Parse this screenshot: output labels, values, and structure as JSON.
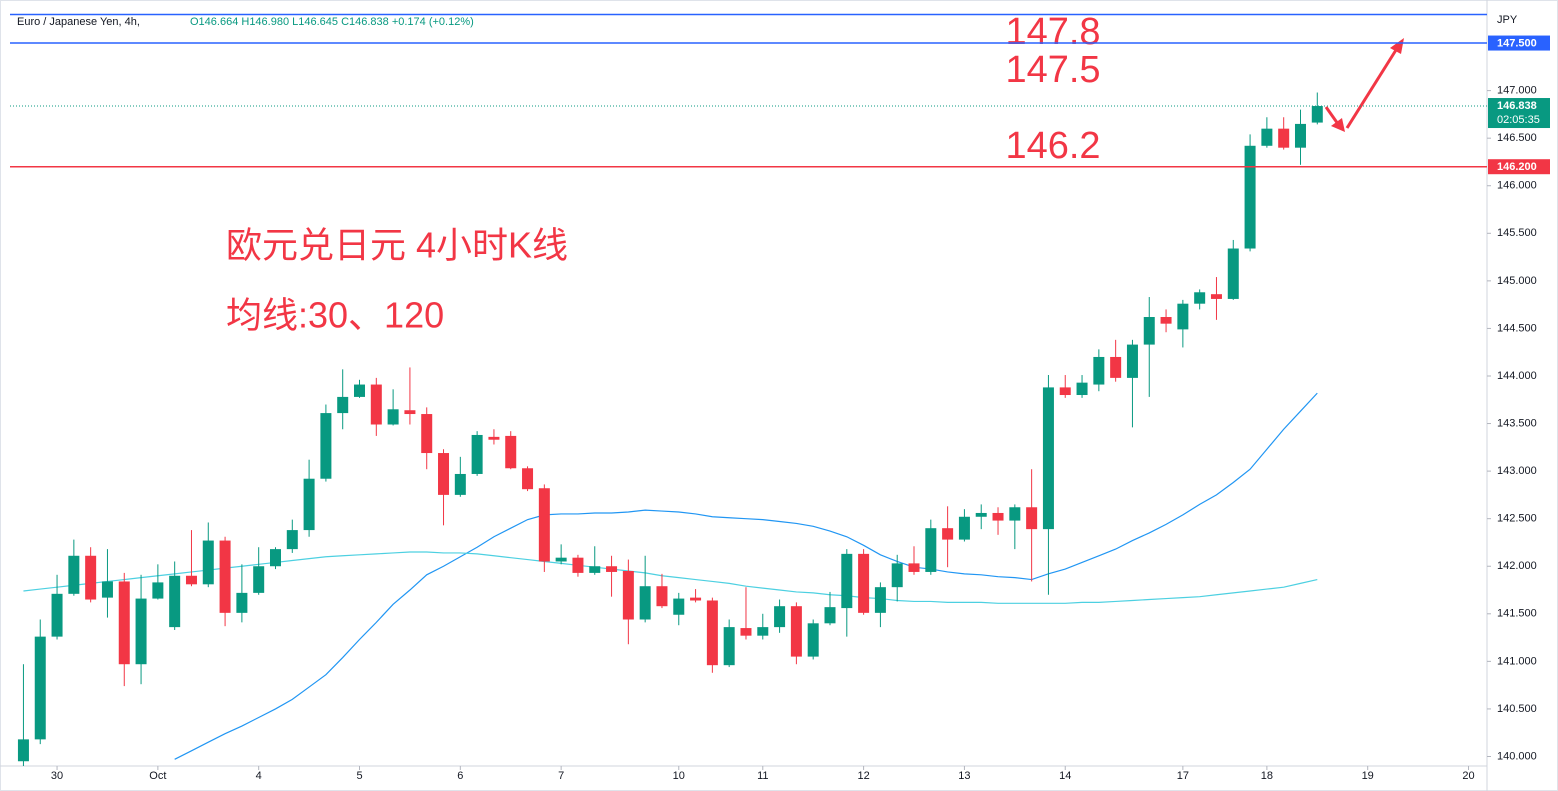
{
  "chart_data": {
    "type": "candlestick",
    "symbol": "Euro / Japanese Yen, 4h,",
    "ohlc_text": "O146.664 H146.980 L146.645 C146.838 +0.174 (+0.12%)",
    "currency": "JPY",
    "title": "欧元兑日元 4小时K线",
    "subtitle": "均线:30、120",
    "annotations": [
      "147.8",
      "147.5",
      "146.2"
    ],
    "up_color": "#089981",
    "down_color": "#f23645",
    "open": [
      139.95,
      140.18,
      141.26,
      141.71,
      142.11,
      141.67,
      141.84,
      140.97,
      141.66,
      141.36,
      141.9,
      141.81,
      142.27,
      141.51,
      141.72,
      142.0,
      142.18,
      142.38,
      142.92,
      143.61,
      143.78,
      143.91,
      143.49,
      143.64,
      143.6,
      143.19,
      142.75,
      142.97,
      143.36,
      143.37,
      143.03,
      142.82,
      142.05,
      142.09,
      141.93,
      142.0,
      141.95,
      141.44,
      141.79,
      141.49,
      141.67,
      141.64,
      140.96,
      141.35,
      141.27,
      141.36,
      141.58,
      141.05,
      141.4,
      141.56,
      142.13,
      141.51,
      141.78,
      142.03,
      141.94,
      142.4,
      142.28,
      142.52,
      142.56,
      142.48,
      142.62,
      142.39,
      143.88,
      143.8,
      143.91,
      144.2,
      143.98,
      144.33,
      144.62,
      144.49,
      144.76,
      144.86,
      144.81,
      145.34,
      146.42,
      146.6,
      146.4,
      146.664
    ],
    "high": [
      140.97,
      141.44,
      141.91,
      142.28,
      142.2,
      142.18,
      141.93,
      141.91,
      142.02,
      142.05,
      142.38,
      142.46,
      142.31,
      142.02,
      142.2,
      142.2,
      142.49,
      143.12,
      143.7,
      144.07,
      143.96,
      143.98,
      143.86,
      144.09,
      143.67,
      143.23,
      143.15,
      143.42,
      143.44,
      143.42,
      143.05,
      142.86,
      142.23,
      142.12,
      142.21,
      142.11,
      142.07,
      142.11,
      141.92,
      141.72,
      141.76,
      141.67,
      141.44,
      141.78,
      141.5,
      141.65,
      141.62,
      141.44,
      141.73,
      142.18,
      142.18,
      141.83,
      142.12,
      142.21,
      142.49,
      142.63,
      142.6,
      142.65,
      142.62,
      142.65,
      143.02,
      144.01,
      144.01,
      144.01,
      144.28,
      144.38,
      144.38,
      144.83,
      144.7,
      144.8,
      144.91,
      145.04,
      145.43,
      146.54,
      146.72,
      146.72,
      146.8,
      146.98
    ],
    "low": [
      139.9,
      140.13,
      141.23,
      141.69,
      141.62,
      141.46,
      140.74,
      140.76,
      141.65,
      141.33,
      141.79,
      141.78,
      141.37,
      141.41,
      141.7,
      141.97,
      142.14,
      142.31,
      142.89,
      143.44,
      143.77,
      143.37,
      143.48,
      143.49,
      143.02,
      142.43,
      142.73,
      142.95,
      143.28,
      143.02,
      142.79,
      141.94,
      142.02,
      141.89,
      141.91,
      141.68,
      141.18,
      141.41,
      141.56,
      141.38,
      141.62,
      140.88,
      140.94,
      141.23,
      141.23,
      141.3,
      140.97,
      141.02,
      141.38,
      141.26,
      141.49,
      141.36,
      141.63,
      141.91,
      141.91,
      141.99,
      142.26,
      142.39,
      142.33,
      142.18,
      141.84,
      141.7,
      143.77,
      143.77,
      143.84,
      143.94,
      143.46,
      143.78,
      144.46,
      144.3,
      144.7,
      144.59,
      144.8,
      145.31,
      146.4,
      146.38,
      146.22,
      146.645
    ],
    "close": [
      140.18,
      141.26,
      141.71,
      142.11,
      141.65,
      141.84,
      140.97,
      141.66,
      141.83,
      141.9,
      141.81,
      142.27,
      141.51,
      141.72,
      142.0,
      142.18,
      142.38,
      142.92,
      143.61,
      143.78,
      143.91,
      143.49,
      143.65,
      143.6,
      143.19,
      142.75,
      142.97,
      143.38,
      143.33,
      143.03,
      142.81,
      142.05,
      142.09,
      141.93,
      142.0,
      141.94,
      141.44,
      141.79,
      141.58,
      141.66,
      141.64,
      140.96,
      141.36,
      141.27,
      141.36,
      141.58,
      141.05,
      141.4,
      141.57,
      142.13,
      141.51,
      141.78,
      142.03,
      141.94,
      142.4,
      142.28,
      142.52,
      142.56,
      142.48,
      142.62,
      142.39,
      143.88,
      143.8,
      143.93,
      144.2,
      143.98,
      144.33,
      144.62,
      144.55,
      144.76,
      144.88,
      144.81,
      145.34,
      146.42,
      146.6,
      146.4,
      146.65,
      146.838
    ],
    "lines": [
      {
        "color": "#2196f3",
        "values": [
          null,
          null,
          null,
          null,
          null,
          null,
          null,
          null,
          null,
          139.97,
          140.06,
          140.15,
          140.24,
          140.32,
          140.41,
          140.5,
          140.6,
          140.73,
          140.86,
          141.04,
          141.23,
          141.41,
          141.6,
          141.75,
          141.91,
          142.0,
          142.1,
          142.2,
          142.31,
          142.4,
          142.49,
          142.54,
          142.55,
          142.55,
          142.56,
          142.56,
          142.57,
          142.59,
          142.58,
          142.57,
          142.55,
          142.52,
          142.51,
          142.5,
          142.49,
          142.47,
          142.45,
          142.42,
          142.37,
          142.31,
          142.22,
          142.12,
          142.05,
          141.99,
          141.97,
          141.94,
          141.92,
          141.91,
          141.89,
          141.88,
          141.86,
          141.92,
          141.97,
          142.04,
          142.11,
          142.18,
          142.27,
          142.35,
          142.44,
          142.54,
          142.65,
          142.75,
          142.88,
          143.02,
          143.23,
          143.44,
          143.63,
          143.82
        ]
      },
      {
        "color": "#4dd0e1",
        "values": [
          141.74,
          141.76,
          141.78,
          141.8,
          141.82,
          141.84,
          141.86,
          141.88,
          141.9,
          141.92,
          141.94,
          141.96,
          141.98,
          142.0,
          142.02,
          142.04,
          142.06,
          142.08,
          142.1,
          142.11,
          142.12,
          142.13,
          142.14,
          142.15,
          142.15,
          142.14,
          142.14,
          142.13,
          142.11,
          142.09,
          142.07,
          142.05,
          142.03,
          142.01,
          141.99,
          141.97,
          141.95,
          141.93,
          141.9,
          141.88,
          141.86,
          141.84,
          141.82,
          141.79,
          141.77,
          141.75,
          141.73,
          141.72,
          141.7,
          141.69,
          141.67,
          141.66,
          141.64,
          141.63,
          141.63,
          141.62,
          141.62,
          141.62,
          141.61,
          141.61,
          141.61,
          141.61,
          141.61,
          141.62,
          141.62,
          141.63,
          141.64,
          141.65,
          141.66,
          141.67,
          141.68,
          141.7,
          141.72,
          141.74,
          141.76,
          141.78,
          141.82,
          141.86
        ]
      }
    ],
    "price_lines": [
      {
        "value": 147.8,
        "color": "#2962ff"
      },
      {
        "value": 147.5,
        "color": "#2962ff",
        "label": "147.500"
      },
      {
        "value": 146.2,
        "color": "#f23645",
        "label": "146.200"
      }
    ],
    "last_price": {
      "value": 146.838,
      "label": "146.838",
      "countdown": "02:05:35",
      "color": "#089981"
    },
    "ylim": [
      139.9,
      147.9
    ],
    "yticks": [
      {
        "value": 140,
        "label": "140.000"
      },
      {
        "value": 140.5,
        "label": "140.500"
      },
      {
        "value": 141,
        "label": "141.000"
      },
      {
        "value": 141.5,
        "label": "141.500"
      },
      {
        "value": 142,
        "label": "142.000"
      },
      {
        "value": 142.5,
        "label": "142.500"
      },
      {
        "value": 143,
        "label": "143.000"
      },
      {
        "value": 143.5,
        "label": "143.500"
      },
      {
        "value": 144,
        "label": "144.000"
      },
      {
        "value": 144.5,
        "label": "144.500"
      },
      {
        "value": 145,
        "label": "145.000"
      },
      {
        "value": 145.5,
        "label": "145.500"
      },
      {
        "value": 146,
        "label": "146.000"
      },
      {
        "value": 146.5,
        "label": "146.500"
      },
      {
        "value": 147,
        "label": "147.000"
      }
    ],
    "xlim": [
      -0.8,
      87.1
    ],
    "xticks": [
      {
        "value": 2,
        "label": "30"
      },
      {
        "value": 8,
        "label": "Oct"
      },
      {
        "value": 14,
        "label": "4"
      },
      {
        "value": 20,
        "label": "5"
      },
      {
        "value": 26,
        "label": "6"
      },
      {
        "value": 32,
        "label": "7"
      },
      {
        "value": 39,
        "label": "10"
      },
      {
        "value": 44,
        "label": "11"
      },
      {
        "value": 50,
        "label": "12"
      },
      {
        "value": 56,
        "label": "13"
      },
      {
        "value": 62,
        "label": "14"
      },
      {
        "value": 69,
        "label": "17"
      },
      {
        "value": 74,
        "label": "18"
      },
      {
        "value": 80,
        "label": "19"
      },
      {
        "value": 86,
        "label": "20"
      }
    ],
    "grid": false
  }
}
